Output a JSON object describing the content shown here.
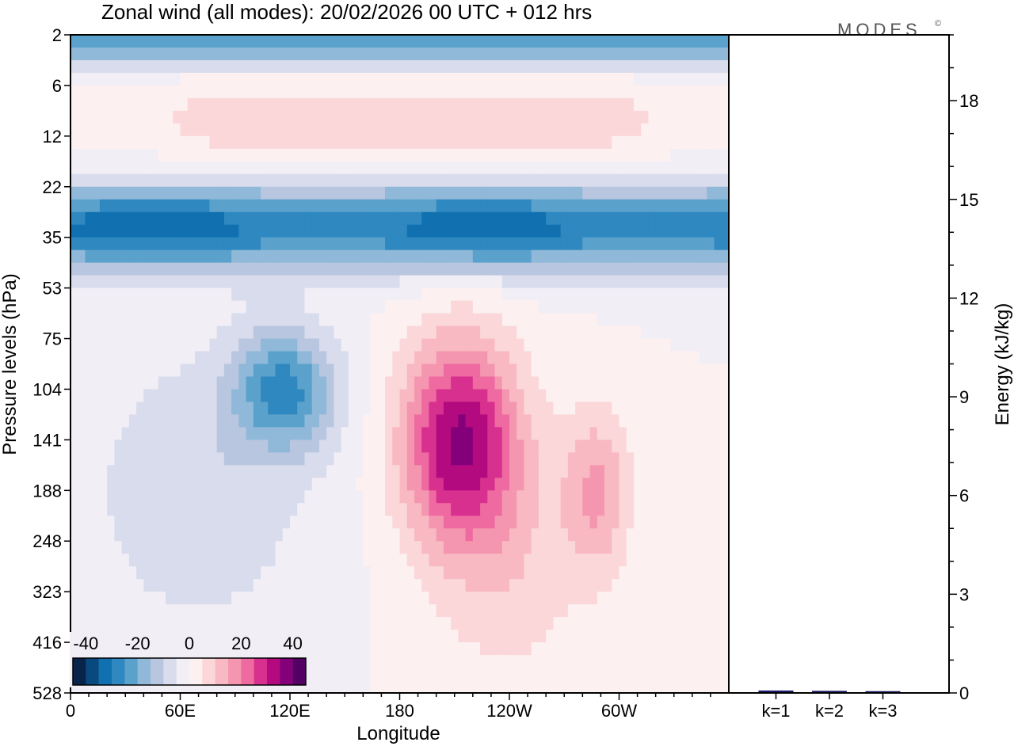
{
  "chart_data": [
    {
      "type": "heatmap",
      "title": "Zonal wind (all modes):  20/02/2026  00 UTC  + 012 hrs",
      "xlabel": "Longitude",
      "ylabel": "Pressure levels (hPa)",
      "x_ticks": [
        "0",
        "60E",
        "120E",
        "180",
        "120W",
        "60W"
      ],
      "y_levels": [
        "2",
        "6",
        "12",
        "22",
        "35",
        "53",
        "75",
        "104",
        "141",
        "188",
        "248",
        "323",
        "416",
        "528"
      ],
      "colorbar": {
        "ticks": [
          "-40",
          "-20",
          "0",
          "20",
          "40"
        ],
        "range": [
          -45,
          45
        ],
        "colors": [
          "#08244a",
          "#084a80",
          "#1170b0",
          "#2f88c0",
          "#5aa2cc",
          "#90b8d8",
          "#b8c6e0",
          "#d8dcec",
          "#f2eef6",
          "#fdf0f0",
          "#fbd7d9",
          "#f8b9c2",
          "#f596b0",
          "#ee6aa0",
          "#d8308e",
          "#b30a80",
          "#84007a",
          "#520064"
        ]
      },
      "features": [
        {
          "name": "upper easterly band",
          "lon_range": [
            0,
            360
          ],
          "level_range": [
            "22",
            "53"
          ],
          "value": -30
        },
        {
          "name": "top-level easterlies",
          "lon_range": [
            0,
            360
          ],
          "level_range": [
            "2",
            "6"
          ],
          "value": -25
        },
        {
          "name": "weak westerly layer",
          "lon_range": [
            40,
            330
          ],
          "level_range": [
            "6",
            "22"
          ],
          "value": 8
        },
        {
          "name": "westerly jet core",
          "lon_center": 213,
          "level_center": "141",
          "value": 35
        },
        {
          "name": "easterly cell",
          "lon_center": 117,
          "level_center": "104",
          "value": -25
        },
        {
          "name": "secondary westerly",
          "lon_center": 288,
          "level_center": "188",
          "value": 15
        }
      ]
    },
    {
      "type": "bar",
      "ylabel": "Energy (kJ/kg)",
      "categories": [
        "k=1",
        "k=2",
        "k=3"
      ],
      "values": [
        0.05,
        0.04,
        0.03
      ],
      "ylim": [
        0,
        20
      ],
      "y_ticks": [
        "0",
        "3",
        "6",
        "9",
        "12",
        "15",
        "18"
      ],
      "bar_color": "#1a1a6a"
    }
  ],
  "logo": "MODES",
  "logo_mark": "©"
}
